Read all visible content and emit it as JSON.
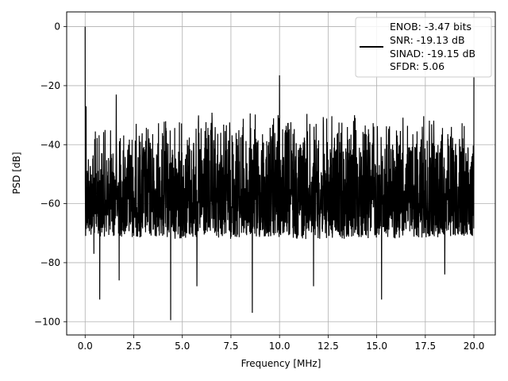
{
  "chart_data": {
    "type": "line",
    "title": "",
    "xlabel": "Frequency [MHz]",
    "ylabel": "PSD [dB]",
    "xlim": [
      -0.95,
      21.1
    ],
    "ylim": [
      -104.5,
      5
    ],
    "x_ticks": [
      0.0,
      2.5,
      5.0,
      7.5,
      10.0,
      12.5,
      15.0,
      17.5,
      20.0
    ],
    "x_tick_labels": [
      "0.0",
      "2.5",
      "5.0",
      "7.5",
      "10.0",
      "12.5",
      "15.0",
      "17.5",
      "20.0"
    ],
    "y_ticks": [
      0,
      -20,
      -40,
      -60,
      -80,
      -100
    ],
    "y_tick_labels": [
      "0",
      "−20",
      "−40",
      "−60",
      "−80",
      "−100"
    ],
    "grid": true,
    "legend_position": "top-right",
    "series": [
      {
        "name": "ENOB: -3.47 bits\nSNR: -19.13 dB\nSINAD: -19.15 dB\nSFDR: 5.06",
        "color": "#000000",
        "x_range": [
          0,
          20
        ],
        "upper_envelope": [
          [
            0,
            -34
          ],
          [
            2.5,
            -31
          ],
          [
            5,
            -29
          ],
          [
            7.5,
            -28
          ],
          [
            10,
            -28
          ],
          [
            12.5,
            -28.5
          ],
          [
            15,
            -29
          ],
          [
            17.5,
            -30
          ],
          [
            20,
            -31
          ]
        ],
        "lower_envelope": [
          [
            0,
            -71
          ],
          [
            5,
            -72
          ],
          [
            10,
            -72
          ],
          [
            15,
            -72
          ],
          [
            20,
            -71
          ]
        ],
        "peaks": [
          [
            0.0,
            0
          ],
          [
            0.05,
            -27
          ],
          [
            1.6,
            -23
          ],
          [
            10.0,
            -16.5
          ],
          [
            20.0,
            -17
          ]
        ],
        "dips": [
          [
            0.45,
            -77
          ],
          [
            0.75,
            -92.5
          ],
          [
            1.75,
            -86
          ],
          [
            4.4,
            -99.5
          ],
          [
            5.75,
            -88
          ],
          [
            8.6,
            -97
          ],
          [
            11.75,
            -88
          ],
          [
            15.25,
            -92.5
          ],
          [
            18.5,
            -84
          ]
        ]
      }
    ]
  },
  "legend": {
    "lines": [
      "ENOB: -3.47 bits",
      "SNR: -19.13 dB",
      "SINAD: -19.15 dB",
      "SFDR: 5.06"
    ]
  }
}
